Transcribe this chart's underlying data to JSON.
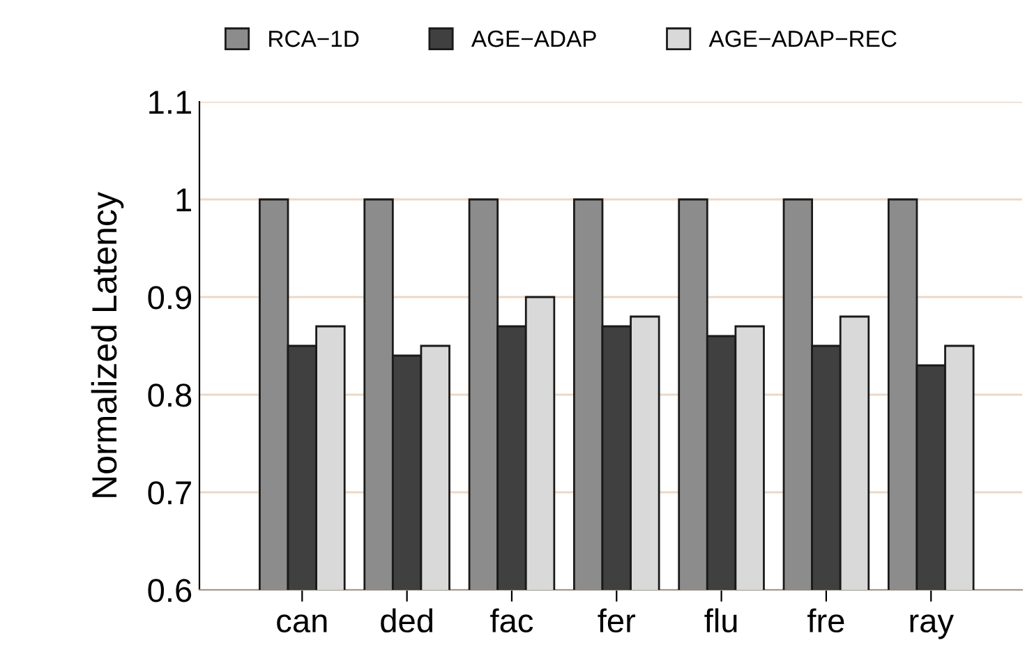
{
  "chart_data": {
    "type": "bar",
    "ylabel": "Normalized Latency",
    "categories": [
      "can",
      "ded",
      "fac",
      "fer",
      "flu",
      "fre",
      "ray"
    ],
    "series": [
      {
        "name": "RCA−1D",
        "color": "#8c8c8c",
        "values": [
          1,
          1,
          1,
          1,
          1,
          1,
          1
        ]
      },
      {
        "name": "AGE−ADAP",
        "color": "#404040",
        "values": [
          0.85,
          0.84,
          0.87,
          0.87,
          0.86,
          0.85,
          0.83
        ]
      },
      {
        "name": "AGE−ADAP−REC",
        "color": "#d9d9d9",
        "values": [
          0.87,
          0.85,
          0.9,
          0.88,
          0.87,
          0.88,
          0.85
        ]
      }
    ],
    "ylim": [
      0.6,
      1.1
    ],
    "yticks": [
      0.6,
      0.7,
      0.8,
      0.9,
      1,
      1.1
    ],
    "grid": "y",
    "legend": "top"
  }
}
